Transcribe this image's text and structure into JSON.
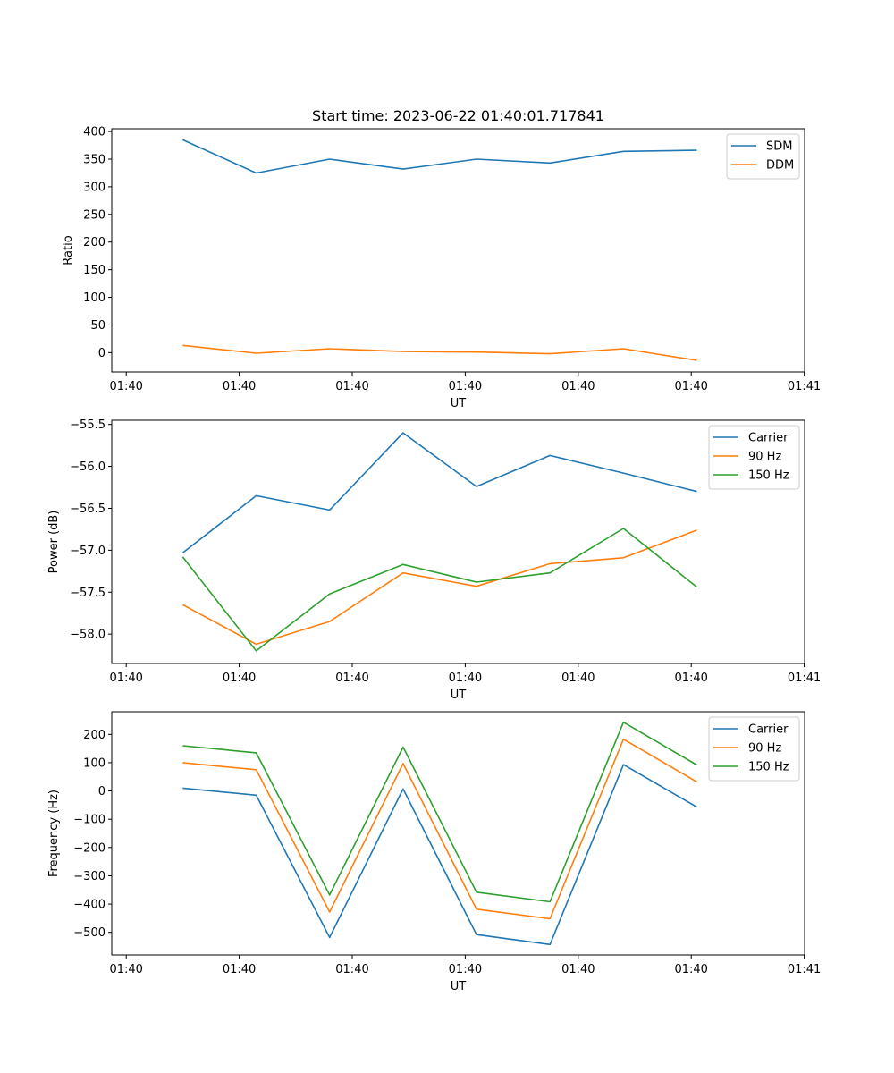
{
  "chart_data": [
    {
      "type": "line",
      "title": "Start time: 2023-06-22 01:40:01.717841",
      "xlabel": "UT",
      "ylabel": "Ratio",
      "xlim": [
        0,
        6
      ],
      "ylim": [
        -35,
        405
      ],
      "yticks": [
        0,
        50,
        100,
        150,
        200,
        250,
        300,
        350,
        400
      ],
      "xtick_positions": [
        0,
        1,
        2,
        3,
        4,
        5,
        6
      ],
      "xtick_labels": [
        "01:40",
        "01:40",
        "01:40",
        "01:40",
        "01:40",
        "01:40",
        "01:41"
      ],
      "x": [
        0.5,
        1.15,
        1.8,
        2.45,
        3.1,
        3.75,
        4.4,
        5.05
      ],
      "legend": "top-right",
      "grid": false,
      "series": [
        {
          "name": "SDM",
          "color": "#1f77b4",
          "values": [
            385,
            325,
            350,
            332,
            350,
            343,
            364,
            366
          ]
        },
        {
          "name": "DDM",
          "color": "#ff7f0e",
          "values": [
            13,
            -1,
            7,
            2,
            1,
            -2,
            7,
            -14
          ]
        }
      ]
    },
    {
      "type": "line",
      "title": "",
      "xlabel": "UT",
      "ylabel": "Power (dB)",
      "xlim": [
        0,
        6
      ],
      "ylim": [
        -58.35,
        -55.45
      ],
      "yticks": [
        -58.0,
        -57.5,
        -57.0,
        -56.5,
        -56.0,
        -55.5
      ],
      "ytick_labels": [
        "−58.0",
        "−57.5",
        "−57.0",
        "−56.5",
        "−56.0",
        "−55.5"
      ],
      "xtick_positions": [
        0,
        1,
        2,
        3,
        4,
        5,
        6
      ],
      "xtick_labels": [
        "01:40",
        "01:40",
        "01:40",
        "01:40",
        "01:40",
        "01:40",
        "01:41"
      ],
      "x": [
        0.5,
        1.15,
        1.8,
        2.45,
        3.1,
        3.75,
        4.4,
        5.05
      ],
      "legend": "top-right",
      "grid": false,
      "series": [
        {
          "name": "Carrier",
          "color": "#1f77b4",
          "values": [
            -57.03,
            -56.35,
            -56.52,
            -55.6,
            -56.24,
            -55.87,
            -56.08,
            -56.3
          ]
        },
        {
          "name": "90 Hz",
          "color": "#ff7f0e",
          "values": [
            -57.65,
            -58.12,
            -57.85,
            -57.27,
            -57.43,
            -57.16,
            -57.09,
            -56.76
          ]
        },
        {
          "name": "150 Hz",
          "color": "#2ca02c",
          "values": [
            -57.08,
            -58.2,
            -57.52,
            -57.17,
            -57.38,
            -57.27,
            -56.74,
            -57.44
          ]
        }
      ]
    },
    {
      "type": "line",
      "title": "",
      "xlabel": "UT",
      "ylabel": "Frequency (Hz)",
      "xlim": [
        0,
        6
      ],
      "ylim": [
        -580,
        280
      ],
      "yticks": [
        -500,
        -400,
        -300,
        -200,
        -100,
        0,
        100,
        200
      ],
      "ytick_labels": [
        "−500",
        "−400",
        "−300",
        "−200",
        "−100",
        "0",
        "100",
        "200"
      ],
      "xtick_positions": [
        0,
        1,
        2,
        3,
        4,
        5,
        6
      ],
      "xtick_labels": [
        "01:40",
        "01:40",
        "01:40",
        "01:40",
        "01:40",
        "01:40",
        "01:41"
      ],
      "x": [
        0.5,
        1.15,
        1.8,
        2.45,
        3.1,
        3.75,
        4.4,
        5.05
      ],
      "legend": "top-right",
      "grid": false,
      "series": [
        {
          "name": "Carrier",
          "color": "#1f77b4",
          "values": [
            10,
            -15,
            -518,
            7,
            -508,
            -543,
            93,
            -57
          ]
        },
        {
          "name": "90 Hz",
          "color": "#ff7f0e",
          "values": [
            100,
            75,
            -428,
            97,
            -418,
            -452,
            183,
            32
          ]
        },
        {
          "name": "150 Hz",
          "color": "#2ca02c",
          "values": [
            160,
            135,
            -368,
            155,
            -358,
            -392,
            243,
            92
          ]
        }
      ]
    }
  ]
}
